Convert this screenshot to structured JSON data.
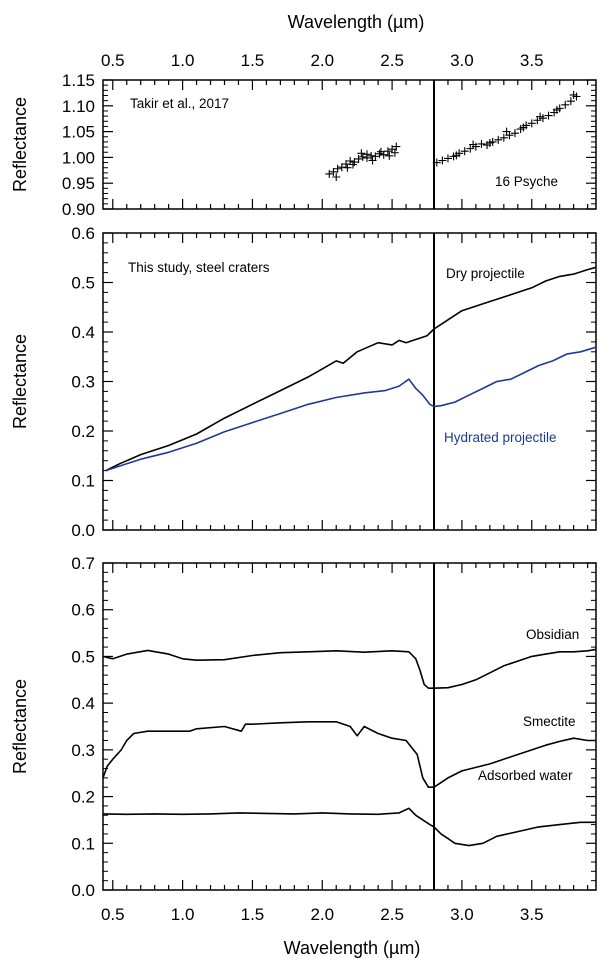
{
  "colors": {
    "black": "#000000",
    "blue": "#1f3a93"
  },
  "figure": {
    "top_xlabel": "Wavelength (µm)",
    "bottom_xlabel": "Wavelength (µm)",
    "top_xticks": [
      "0.5",
      "1.0",
      "1.5",
      "2.0",
      "2.5",
      "3.0",
      "3.5"
    ],
    "bottom_xticks": [
      "0.5",
      "1.0",
      "1.5",
      "2.0",
      "2.5",
      "3.0",
      "3.5"
    ]
  },
  "chart_data": [
    {
      "type": "scatter",
      "id": "psyche",
      "xlabel": "Wavelength (µm)",
      "ylabel": "Reflectance",
      "xlim": [
        0.43,
        3.96
      ],
      "ylim": [
        0.9,
        1.15
      ],
      "yticks": [
        "0.90",
        "0.95",
        "1.00",
        "1.05",
        "1.10",
        "1.15"
      ],
      "vline_x": 2.8,
      "marker": "+",
      "annotations": {
        "source": "Takir et al., 2017",
        "target": "16 Psyche"
      },
      "series": [
        {
          "x": [
            2.05,
            2.08,
            2.11,
            2.14,
            2.17,
            2.2,
            2.23,
            2.26,
            2.29,
            2.32,
            2.35,
            2.38,
            2.41,
            2.44,
            2.47,
            2.5,
            2.53,
            2.1,
            2.22,
            2.28,
            2.36,
            2.42,
            2.48,
            2.52,
            2.18,
            2.32,
            2.82,
            2.86,
            2.9,
            2.94,
            2.98,
            3.02,
            3.06,
            3.1,
            3.14,
            3.18,
            3.22,
            3.26,
            3.3,
            3.34,
            3.38,
            3.42,
            3.46,
            3.5,
            3.54,
            3.58,
            3.62,
            3.66,
            3.7,
            3.74,
            3.78,
            3.82,
            2.96,
            3.08,
            3.2,
            3.32,
            3.44,
            3.56,
            3.68,
            3.8
          ],
          "y": [
            0.968,
            0.972,
            0.978,
            0.981,
            0.987,
            0.993,
            0.991,
            0.997,
            1.001,
            0.999,
            1.003,
            1.002,
            1.007,
            1.005,
            1.012,
            1.016,
            1.021,
            0.962,
            0.986,
            1.008,
            0.994,
            1.011,
            1.003,
            1.009,
            0.98,
            1.006,
            0.99,
            0.994,
            0.998,
            1.002,
            1.008,
            1.012,
            1.017,
            1.021,
            1.026,
            1.024,
            1.03,
            1.034,
            1.038,
            1.043,
            1.047,
            1.055,
            1.062,
            1.066,
            1.072,
            1.076,
            1.081,
            1.087,
            1.095,
            1.102,
            1.109,
            1.118,
            1.004,
            1.025,
            1.028,
            1.05,
            1.058,
            1.079,
            1.092,
            1.121
          ]
        }
      ]
    },
    {
      "type": "line",
      "id": "steel",
      "ylabel": "Reflectance",
      "xlim": [
        0.43,
        3.96
      ],
      "ylim": [
        0.0,
        0.65
      ],
      "yticks": [
        "0.0",
        "0.1",
        "0.2",
        "0.3",
        "0.4",
        "0.5",
        "0.6"
      ],
      "vline_x": 2.8,
      "annotations": {
        "title": "This study, steel craters"
      },
      "series": [
        {
          "name": "Dry projectile",
          "color": "#000000",
          "x": [
            0.45,
            0.55,
            0.7,
            0.9,
            1.1,
            1.3,
            1.5,
            1.7,
            1.9,
            2.1,
            2.15,
            2.25,
            2.4,
            2.5,
            2.55,
            2.6,
            2.65,
            2.7,
            2.75,
            2.8,
            2.9,
            3.0,
            3.1,
            3.2,
            3.3,
            3.4,
            3.5,
            3.6,
            3.7,
            3.8,
            3.9,
            3.96
          ],
          "y": [
            0.13,
            0.145,
            0.165,
            0.185,
            0.21,
            0.245,
            0.275,
            0.305,
            0.335,
            0.37,
            0.365,
            0.39,
            0.41,
            0.405,
            0.415,
            0.41,
            0.415,
            0.42,
            0.425,
            0.44,
            0.46,
            0.48,
            0.49,
            0.5,
            0.51,
            0.52,
            0.53,
            0.545,
            0.555,
            0.56,
            0.57,
            0.575
          ]
        },
        {
          "name": "Hydrated projectile",
          "color": "#1f3a93",
          "x": [
            0.45,
            0.55,
            0.7,
            0.9,
            1.1,
            1.3,
            1.5,
            1.7,
            1.9,
            2.1,
            2.3,
            2.45,
            2.55,
            2.62,
            2.67,
            2.72,
            2.77,
            2.8,
            2.85,
            2.95,
            3.05,
            3.15,
            3.25,
            3.35,
            3.45,
            3.55,
            3.65,
            3.75,
            3.85,
            3.96
          ],
          "y": [
            0.13,
            0.14,
            0.155,
            0.17,
            0.19,
            0.215,
            0.235,
            0.255,
            0.275,
            0.29,
            0.3,
            0.305,
            0.315,
            0.33,
            0.31,
            0.295,
            0.275,
            0.27,
            0.272,
            0.28,
            0.295,
            0.31,
            0.325,
            0.33,
            0.345,
            0.36,
            0.37,
            0.385,
            0.39,
            0.4
          ]
        }
      ]
    },
    {
      "type": "line",
      "id": "minerals",
      "ylabel": "Reflectance",
      "xlabel": "Wavelength (µm)",
      "xlim": [
        0.43,
        3.96
      ],
      "ylim": [
        0.0,
        0.7
      ],
      "yticks": [
        "0.0",
        "0.1",
        "0.2",
        "0.3",
        "0.4",
        "0.5",
        "0.6",
        "0.7"
      ],
      "vline_x": 2.8,
      "series": [
        {
          "name": "Obsidian",
          "color": "#000000",
          "x": [
            0.43,
            0.5,
            0.6,
            0.75,
            0.9,
            1.0,
            1.1,
            1.3,
            1.5,
            1.7,
            1.9,
            2.1,
            2.3,
            2.5,
            2.62,
            2.67,
            2.7,
            2.73,
            2.76,
            2.8,
            2.9,
            3.0,
            3.1,
            3.2,
            3.3,
            3.4,
            3.5,
            3.6,
            3.7,
            3.8,
            3.9,
            3.96
          ],
          "y": [
            0.5,
            0.495,
            0.505,
            0.513,
            0.505,
            0.495,
            0.492,
            0.493,
            0.502,
            0.508,
            0.51,
            0.512,
            0.509,
            0.512,
            0.51,
            0.495,
            0.47,
            0.44,
            0.432,
            0.432,
            0.433,
            0.44,
            0.45,
            0.465,
            0.48,
            0.49,
            0.5,
            0.505,
            0.51,
            0.51,
            0.512,
            0.515
          ]
        },
        {
          "name": "Smectite",
          "color": "#000000",
          "x": [
            0.43,
            0.46,
            0.5,
            0.56,
            0.6,
            0.65,
            0.75,
            0.9,
            1.05,
            1.1,
            1.3,
            1.42,
            1.45,
            1.5,
            1.7,
            1.9,
            2.1,
            2.2,
            2.25,
            2.3,
            2.4,
            2.5,
            2.6,
            2.68,
            2.72,
            2.76,
            2.8,
            2.9,
            3.0,
            3.2,
            3.4,
            3.6,
            3.7,
            3.8,
            3.9,
            3.96
          ],
          "y": [
            0.24,
            0.265,
            0.28,
            0.3,
            0.32,
            0.335,
            0.34,
            0.34,
            0.34,
            0.345,
            0.35,
            0.34,
            0.355,
            0.355,
            0.358,
            0.36,
            0.36,
            0.35,
            0.33,
            0.35,
            0.335,
            0.325,
            0.32,
            0.29,
            0.24,
            0.22,
            0.22,
            0.24,
            0.255,
            0.27,
            0.29,
            0.31,
            0.318,
            0.325,
            0.32,
            0.32
          ]
        },
        {
          "name": "Adsorbed water",
          "color": "#000000",
          "x": [
            0.43,
            0.6,
            0.8,
            1.0,
            1.2,
            1.4,
            1.6,
            1.8,
            2.0,
            2.2,
            2.4,
            2.55,
            2.62,
            2.67,
            2.72,
            2.77,
            2.8,
            2.85,
            2.9,
            2.95,
            3.05,
            3.15,
            3.25,
            3.4,
            3.55,
            3.7,
            3.85,
            3.96
          ],
          "y": [
            0.163,
            0.162,
            0.163,
            0.162,
            0.163,
            0.165,
            0.164,
            0.163,
            0.165,
            0.163,
            0.162,
            0.165,
            0.175,
            0.16,
            0.15,
            0.14,
            0.135,
            0.12,
            0.11,
            0.1,
            0.095,
            0.1,
            0.115,
            0.125,
            0.135,
            0.14,
            0.145,
            0.145
          ]
        }
      ]
    }
  ]
}
